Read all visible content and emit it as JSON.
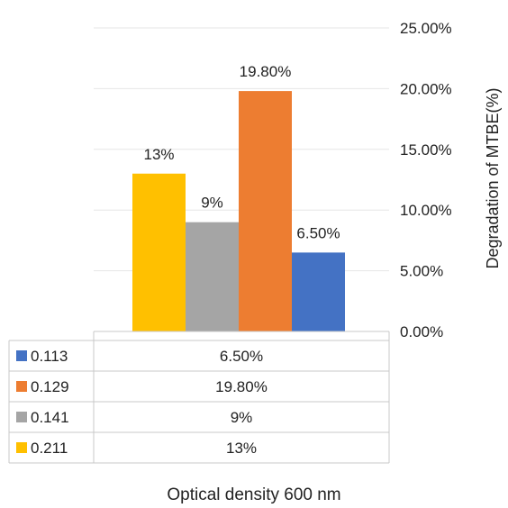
{
  "chart_data": {
    "type": "bar",
    "title": "",
    "xlabel": "Optical density 600 nm",
    "ylabel": "Degradation of MTBE(%)",
    "ylim": [
      0,
      25
    ],
    "y_ticks": [
      "0.00%",
      "5.00%",
      "10.00%",
      "15.00%",
      "20.00%",
      "25.00%"
    ],
    "y_axis_position": "right",
    "grid": true,
    "legend": "data-table",
    "series": [
      {
        "name": "0.211",
        "value": 13,
        "label": "13%",
        "color": "#FFC000"
      },
      {
        "name": "0.141",
        "value": 9,
        "label": "9%",
        "color": "#A5A5A5"
      },
      {
        "name": "0.129",
        "value": 19.8,
        "label": "19.80%",
        "color": "#ED7D31"
      },
      {
        "name": "0.113",
        "value": 6.5,
        "label": "6.50%",
        "color": "#4472C4"
      }
    ],
    "table_rows": [
      {
        "key": "0.113",
        "value": "6.50%",
        "color": "#4472C4"
      },
      {
        "key": "0.129",
        "value": "19.80%",
        "color": "#ED7D31"
      },
      {
        "key": "0.141",
        "value": "9%",
        "color": "#A5A5A5"
      },
      {
        "key": "0.211",
        "value": "13%",
        "color": "#FFC000"
      }
    ]
  }
}
